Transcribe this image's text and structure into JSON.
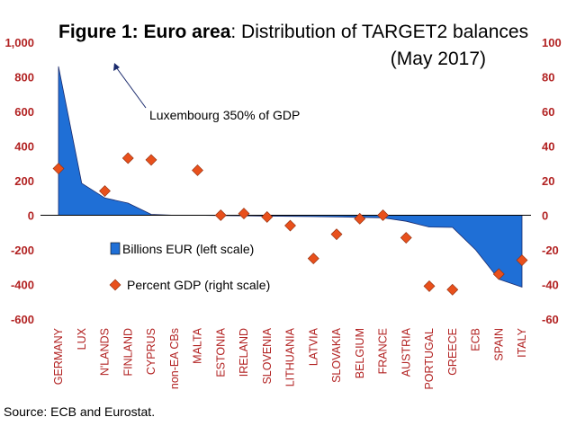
{
  "chart_data": {
    "type": "area",
    "title_bold": "Figure 1: Euro area",
    "title_rest": ": Distribution of TARGET2 balances",
    "subtitle": "(May 2017)",
    "categories": [
      "GERMANY",
      "LUX",
      "N'LANDS",
      "FINLAND",
      "CYPRUS",
      "non-EA CBs",
      "MALTA",
      "ESTONIA",
      "IRELAND",
      "SLOVENIA",
      "LITHUANIA",
      "LATVIA",
      "SLOVAKIA",
      "BELGIUM",
      "FRANCE",
      "AUSTRIA",
      "PORTUGAL",
      "GREECE",
      "ECB",
      "SPAIN",
      "ITALY"
    ],
    "series": [
      {
        "name": "Billions EUR (left scale)",
        "axis": "left",
        "kind": "area",
        "color": "#1f6fd6",
        "values": [
          860,
          185,
          100,
          70,
          5,
          0,
          0,
          -2,
          -3,
          -5,
          -6,
          -8,
          -10,
          -12,
          -15,
          -35,
          -68,
          -70,
          -200,
          -370,
          -415
        ]
      },
      {
        "name": "Percent GDP (right scale)",
        "axis": "right",
        "kind": "marker",
        "color": "#e8501c",
        "values": [
          27,
          null,
          14,
          33,
          32,
          null,
          26,
          0,
          1,
          -1,
          -6,
          -25,
          -11,
          -2,
          0,
          -13,
          -41,
          -43,
          null,
          -34,
          -26
        ]
      }
    ],
    "y_left": {
      "min": -600,
      "max": 1000,
      "ticks": [
        "-600",
        "-400",
        "-200",
        "0",
        "200",
        "400",
        "600",
        "800",
        "1,000"
      ]
    },
    "y_right": {
      "min": -60,
      "max": 100,
      "ticks": [
        "-60",
        "-40",
        "-20",
        "0",
        "20",
        "40",
        "60",
        "80",
        "100"
      ]
    },
    "annotation": "Luxembourg 350% of GDP",
    "legend_position": "bottom-left",
    "grid": false,
    "source": "Source: ECB and Eurostat."
  }
}
